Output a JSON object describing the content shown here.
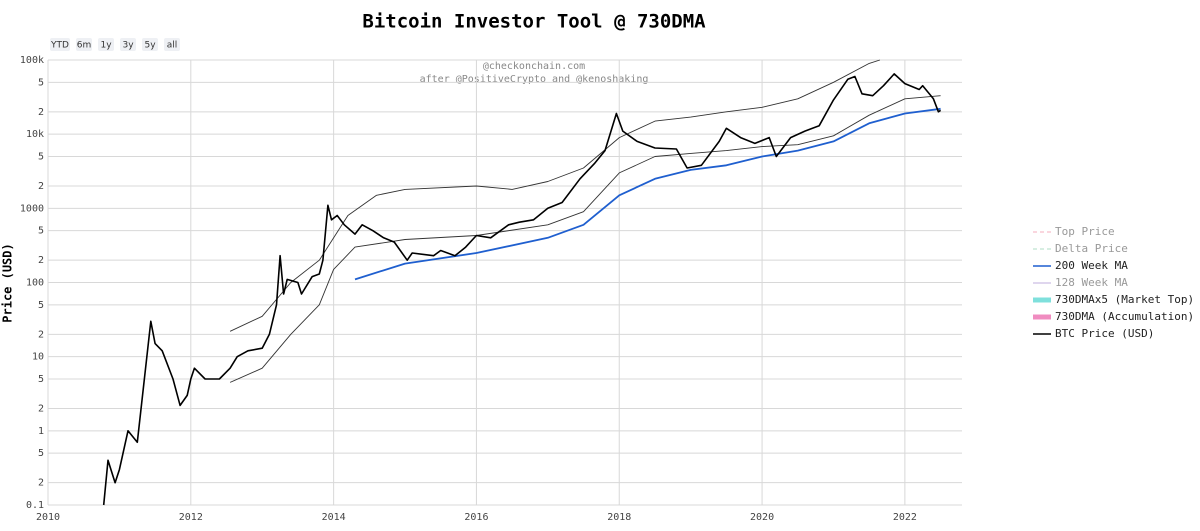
{
  "chart_data": {
    "type": "line",
    "title": "Bitcoin Investor Tool @ 730DMA",
    "annotations": [
      "@checkonchain.com",
      "after @PositiveCrypto and @kenoshaking"
    ],
    "range_buttons": [
      "YTD",
      "6m",
      "1y",
      "3y",
      "5y",
      "all"
    ],
    "y_label": "Price (USD)",
    "log_y": true,
    "grid": true,
    "legend": "right",
    "xlim": [
      2010,
      2022.8
    ],
    "xticks": [
      2010,
      2012,
      2014,
      2016,
      2018,
      2020,
      2022
    ],
    "ylim": [
      0.1,
      100000
    ],
    "yticks": [
      0.1,
      {
        "value": 0.2,
        "label": "2"
      },
      {
        "value": 0.5,
        "label": "5"
      },
      1,
      {
        "value": 2,
        "label": "2"
      },
      {
        "value": 5,
        "label": "5"
      },
      10,
      {
        "value": 20,
        "label": "2"
      },
      {
        "value": 50,
        "label": "5"
      },
      100,
      {
        "value": 200,
        "label": "2"
      },
      {
        "value": 500,
        "label": "5"
      },
      1000,
      {
        "value": 2000,
        "label": "2"
      },
      {
        "value": 5000,
        "label": "5"
      },
      {
        "value": 10000,
        "label": "10k"
      },
      {
        "value": 20000,
        "label": "2"
      },
      {
        "value": 50000,
        "label": "5"
      },
      {
        "value": 100000,
        "label": "100k"
      }
    ],
    "series": [
      {
        "name": "Top Price",
        "color": "#f4a6b8",
        "dash": true,
        "visible": false
      },
      {
        "name": "Delta Price",
        "color": "#a8dcc0",
        "dash": true,
        "visible": false
      },
      {
        "name": "200 Week MA",
        "color": "#1f5fcf",
        "visible": true,
        "x": [
          2014.3,
          2015,
          2016,
          2017,
          2017.5,
          2018,
          2018.5,
          2019,
          2019.5,
          2020,
          2020.5,
          2021,
          2021.5,
          2022,
          2022.5
        ],
        "values": [
          110,
          180,
          250,
          400,
          600,
          1500,
          2500,
          3300,
          3800,
          5000,
          6000,
          8000,
          14000,
          19000,
          22000
        ]
      },
      {
        "name": "128 Week MA",
        "color": "#b9a6dc",
        "visible": false
      },
      {
        "name": "730DMAx5 (Market Top)",
        "color": "#7fe0dc",
        "line_color": "#333333",
        "thick": true,
        "visible": true,
        "x": [
          2012.55,
          2013,
          2013.4,
          2013.8,
          2014.2,
          2014.6,
          2015,
          2016,
          2016.5,
          2017,
          2017.5,
          2018,
          2018.5,
          2019,
          2019.5,
          2020,
          2020.5,
          2021,
          2021.5,
          2021.65
        ],
        "values": [
          22,
          35,
          100,
          200,
          800,
          1500,
          1800,
          2000,
          1800,
          2300,
          3500,
          9000,
          15000,
          17000,
          20000,
          23000,
          30000,
          50000,
          90000,
          100000
        ]
      },
      {
        "name": "730DMA (Accumulation)",
        "color": "#f08cc0",
        "line_color": "#333333",
        "thick": true,
        "visible": true,
        "x": [
          2012.55,
          2013,
          2013.4,
          2013.8,
          2014,
          2014.3,
          2015,
          2016,
          2017,
          2017.5,
          2018,
          2018.5,
          2019,
          2019.5,
          2020,
          2020.5,
          2021,
          2021.5,
          2022,
          2022.5
        ],
        "values": [
          4.5,
          7,
          20,
          50,
          150,
          300,
          380,
          430,
          600,
          900,
          3000,
          5000,
          5500,
          6000,
          6800,
          7200,
          9500,
          18000,
          30000,
          33000
        ]
      },
      {
        "name": "BTC Price (USD)",
        "color": "#000000",
        "visible": true,
        "x": [
          2010.78,
          2010.84,
          2010.94,
          2011.0,
          2011.12,
          2011.25,
          2011.44,
          2011.5,
          2011.6,
          2011.75,
          2011.85,
          2011.95,
          2012.0,
          2012.05,
          2012.2,
          2012.4,
          2012.55,
          2012.65,
          2012.8,
          2013.0,
          2013.1,
          2013.2,
          2013.25,
          2013.3,
          2013.35,
          2013.5,
          2013.55,
          2013.7,
          2013.8,
          2013.85,
          2013.92,
          2013.97,
          2014.05,
          2014.15,
          2014.3,
          2014.4,
          2014.55,
          2014.7,
          2014.85,
          2015.03,
          2015.1,
          2015.4,
          2015.5,
          2015.7,
          2015.85,
          2016.0,
          2016.2,
          2016.45,
          2016.6,
          2016.8,
          2017.0,
          2017.2,
          2017.45,
          2017.65,
          2017.8,
          2017.96,
          2018.05,
          2018.25,
          2018.5,
          2018.8,
          2018.95,
          2019.15,
          2019.4,
          2019.5,
          2019.7,
          2019.9,
          2020.1,
          2020.2,
          2020.4,
          2020.6,
          2020.8,
          2021.0,
          2021.2,
          2021.3,
          2021.4,
          2021.55,
          2021.7,
          2021.85,
          2022.0,
          2022.2,
          2022.25,
          2022.4,
          2022.47,
          2022.5
        ],
        "values": [
          0.1,
          0.4,
          0.2,
          0.3,
          1.0,
          0.7,
          30,
          15,
          12,
          5,
          2.2,
          3,
          5,
          7,
          5,
          5,
          7,
          10,
          12,
          13,
          20,
          50,
          230,
          70,
          110,
          100,
          70,
          120,
          130,
          200,
          1100,
          700,
          800,
          600,
          450,
          600,
          500,
          400,
          350,
          200,
          250,
          230,
          270,
          230,
          300,
          430,
          400,
          600,
          650,
          700,
          1000,
          1200,
          2500,
          4000,
          6000,
          19000,
          11000,
          8000,
          6500,
          6300,
          3500,
          3800,
          8000,
          12000,
          9000,
          7500,
          9000,
          5000,
          9000,
          11000,
          13000,
          29000,
          55000,
          60000,
          35000,
          33000,
          45000,
          65000,
          48000,
          40000,
          45000,
          30000,
          20000,
          21000
        ]
      }
    ]
  }
}
